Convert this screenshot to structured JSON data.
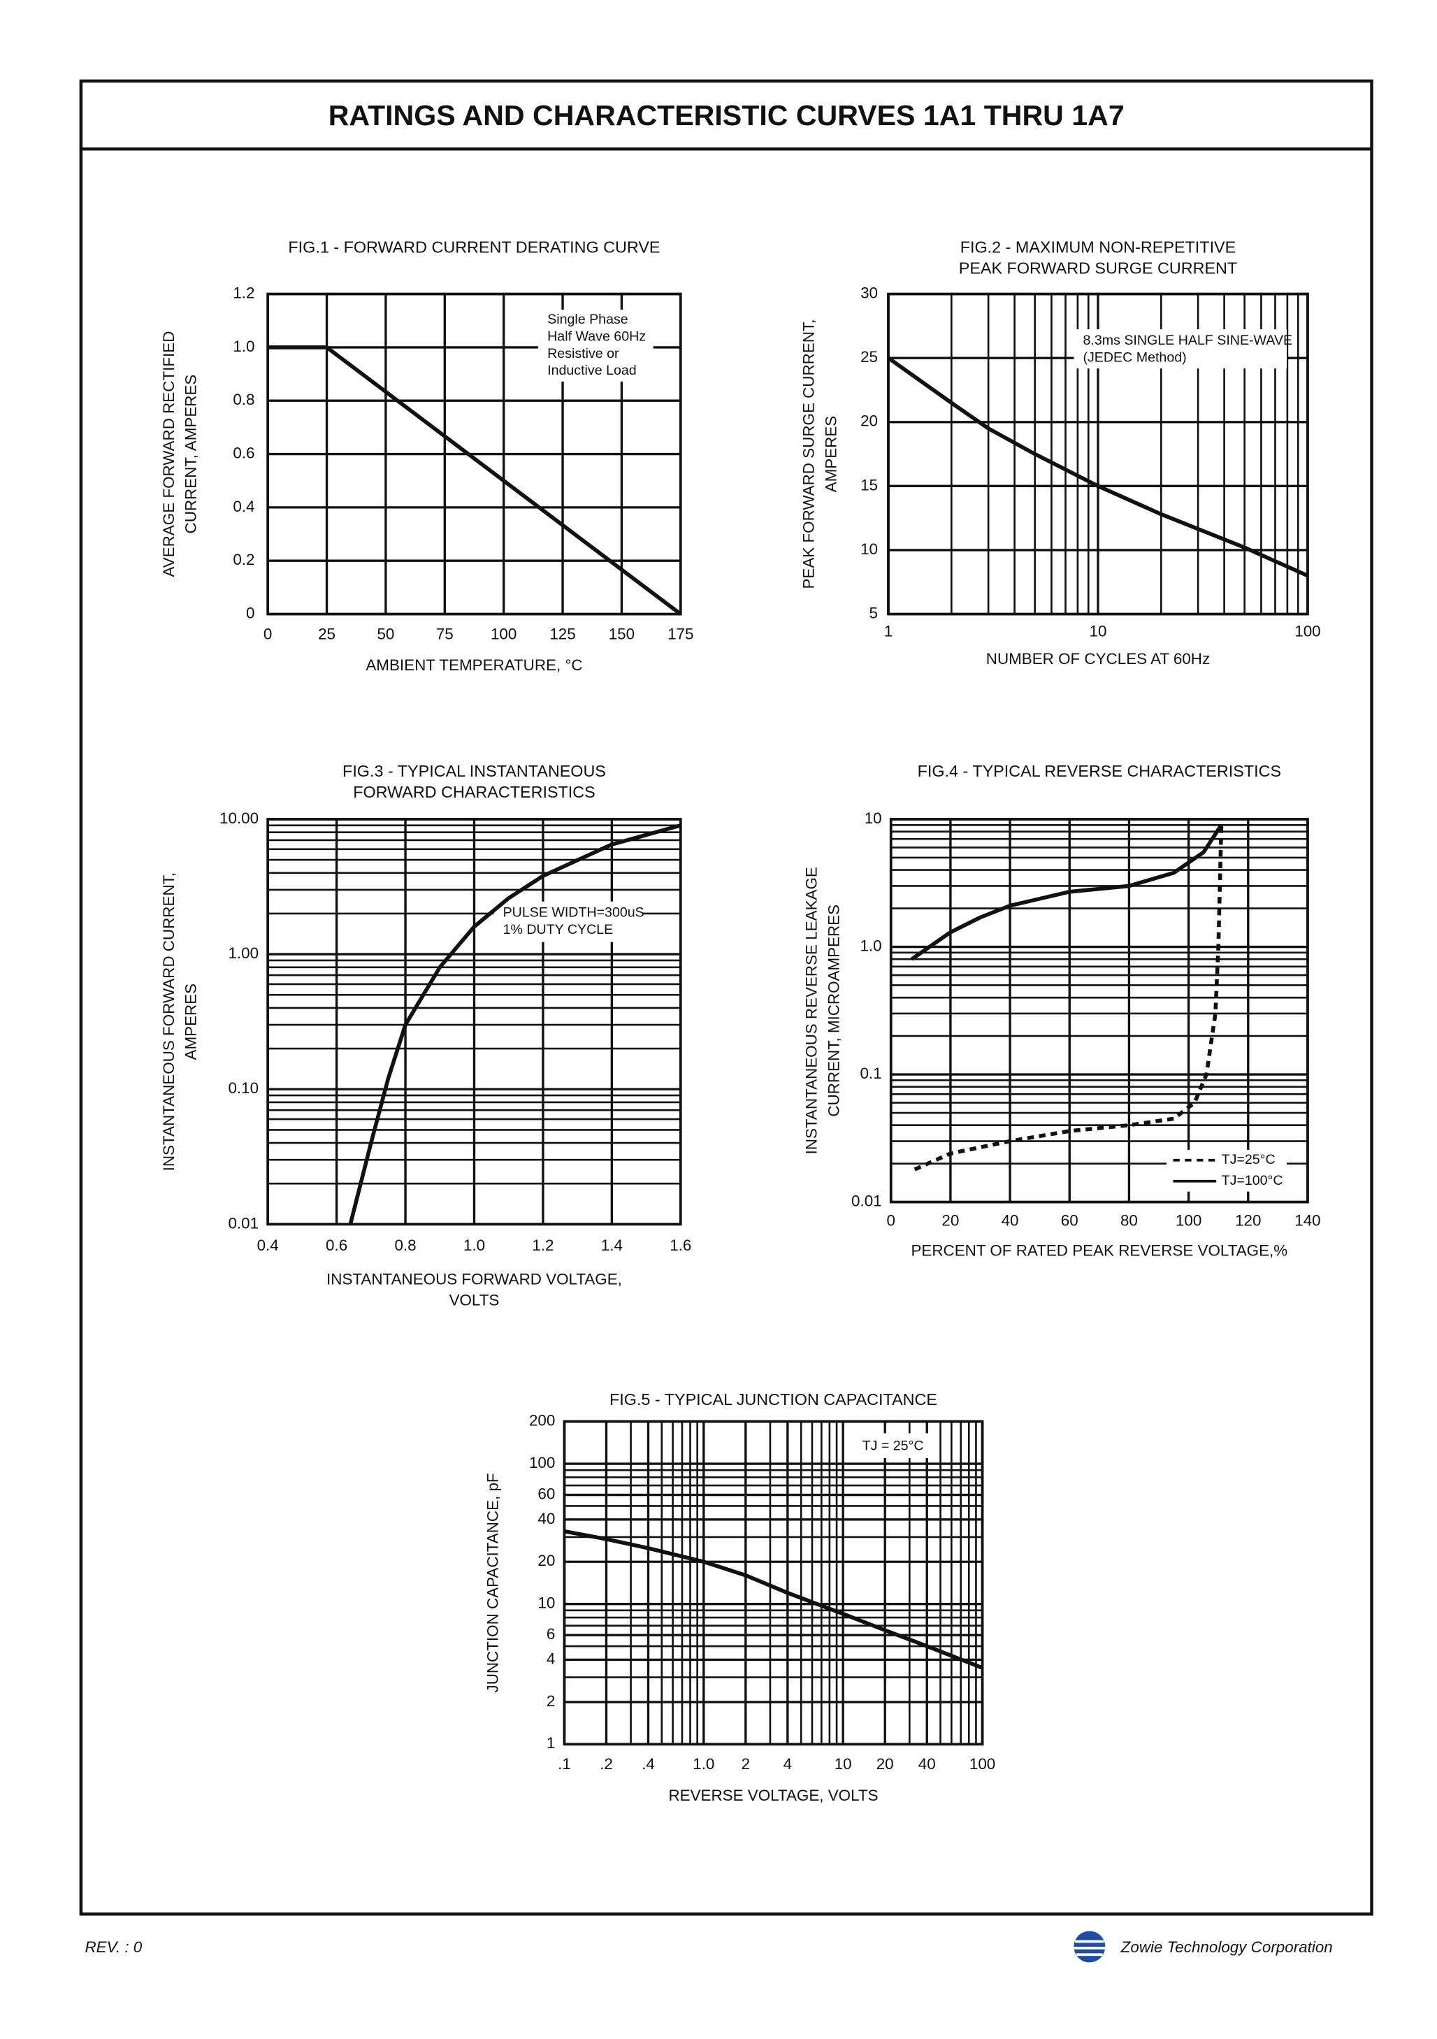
{
  "header": {
    "title": "RATINGS AND CHARACTERISTIC CURVES 1A1 THRU 1A7"
  },
  "footer": {
    "revision": "REV. : 0",
    "company": "Zowie Technology Corporation"
  },
  "chart_data": [
    {
      "type": "line",
      "title": "FIG.1 - FORWARD CURRENT DERATING CURVE",
      "x_label": "AMBIENT TEMPERATURE, °C",
      "y_label": [
        "AVERAGE FORWARD RECTIFIED",
        "CURRENT, AMPERES"
      ],
      "annotation": [
        "Single Phase",
        "Half Wave 60Hz",
        "Resistive or",
        "Inductive Load"
      ],
      "xlim": [
        0,
        175
      ],
      "xticks": [
        0,
        25,
        50,
        75,
        100,
        125,
        150,
        175
      ],
      "ylim": [
        0,
        1.2
      ],
      "yticks": [
        0,
        0.2,
        0.4,
        0.6,
        0.8,
        {
          "value": 1,
          "label": "1.0"
        },
        1.2
      ],
      "grid": true,
      "series": [
        {
          "color": "#111111",
          "style": "solid",
          "x": [
            0,
            25,
            175
          ],
          "values": [
            1,
            1,
            0
          ]
        }
      ]
    },
    {
      "type": "line",
      "title": [
        "FIG.2 - MAXIMUM NON-REPETITIVE",
        "PEAK FORWARD SURGE CURRENT"
      ],
      "x_label": "NUMBER OF CYCLES AT 60Hz",
      "y_label": [
        "PEAK FORWARD SURGE CURRENT,",
        "AMPERES"
      ],
      "annotation": [
        "8.3ms SINGLE HALF SINE-WAVE",
        "(JEDEC Method)"
      ],
      "xscale": "log",
      "xlim": [
        1,
        100
      ],
      "xticks": [
        1,
        10,
        100
      ],
      "xminor": [
        2,
        3,
        4,
        5,
        6,
        7,
        8,
        9,
        20,
        30,
        40,
        50,
        60,
        70,
        80,
        90
      ],
      "ylim": [
        5,
        30
      ],
      "yticks": [
        5,
        10,
        15,
        20,
        25,
        30
      ],
      "grid": true,
      "series": [
        {
          "color": "#111111",
          "style": "solid",
          "x": [
            1,
            2,
            3,
            5,
            10,
            20,
            50,
            100
          ],
          "values": [
            25,
            21.5,
            19.5,
            17.5,
            15,
            12.8,
            10.2,
            8
          ]
        }
      ]
    },
    {
      "type": "line",
      "title": [
        "FIG.3 - TYPICAL INSTANTANEOUS",
        "FORWARD CHARACTERISTICS"
      ],
      "x_label": [
        "INSTANTANEOUS FORWARD VOLTAGE,",
        "VOLTS"
      ],
      "y_label": [
        "INSTANTANEOUS FORWARD CURRENT,",
        "AMPERES"
      ],
      "annotation": [
        "PULSE WIDTH=300uS",
        "1% DUTY CYCLE"
      ],
      "xlim": [
        0.4,
        1.6
      ],
      "xticks": [
        0.4,
        0.6,
        0.8,
        {
          "value": 1,
          "label": "1.0"
        },
        1.2,
        1.4,
        1.6
      ],
      "yscale": "log",
      "ylim": [
        0.01,
        10
      ],
      "yticks": [
        0.01,
        {
          "value": 0.1,
          "label": "0.10"
        },
        {
          "value": 1,
          "label": "1.00"
        },
        {
          "value": 10,
          "label": "10.00"
        }
      ],
      "yminor": [
        0.02,
        0.03,
        0.04,
        0.05,
        0.06,
        0.07,
        0.08,
        0.09,
        0.2,
        0.3,
        0.4,
        0.5,
        0.6,
        0.7,
        0.8,
        0.9,
        2,
        3,
        4,
        5,
        6,
        7,
        8,
        9
      ],
      "grid": true,
      "series": [
        {
          "color": "#111111",
          "style": "solid",
          "x": [
            0.64,
            0.7,
            0.75,
            0.8,
            0.9,
            1.0,
            1.1,
            1.2,
            1.4,
            1.6
          ],
          "values": [
            0.01,
            0.04,
            0.12,
            0.3,
            0.8,
            1.6,
            2.6,
            3.8,
            6.5,
            9
          ]
        }
      ]
    },
    {
      "type": "line",
      "title": "FIG.4 - TYPICAL REVERSE CHARACTERISTICS",
      "x_label": "PERCENT OF RATED PEAK REVERSE VOLTAGE,%",
      "y_label": [
        "INSTANTANEOUS REVERSE LEAKAGE",
        "CURRENT, MICROAMPERES"
      ],
      "xlim": [
        0,
        140
      ],
      "xticks": [
        0,
        20,
        40,
        60,
        80,
        100,
        120,
        140
      ],
      "yscale": "log",
      "ylim": [
        0.01,
        10
      ],
      "yticks": [
        0.01,
        0.1,
        {
          "value": 1,
          "label": "1.0"
        },
        10
      ],
      "yminor": [
        0.02,
        0.03,
        0.04,
        0.05,
        0.06,
        0.07,
        0.08,
        0.09,
        0.2,
        0.3,
        0.4,
        0.5,
        0.6,
        0.7,
        0.8,
        0.9,
        2,
        3,
        4,
        5,
        6,
        7,
        8,
        9
      ],
      "grid": true,
      "legend": "lower right",
      "series": [
        {
          "name": "TJ=25°C",
          "color": "#111111",
          "style": "dashed",
          "x": [
            8,
            20,
            40,
            60,
            80,
            95,
            102,
            106,
            109,
            110,
            110.5,
            111
          ],
          "values": [
            0.018,
            0.024,
            0.03,
            0.036,
            0.04,
            0.045,
            0.06,
            0.1,
            0.3,
            1,
            3,
            9
          ]
        },
        {
          "name": "TJ=100°C",
          "color": "#111111",
          "style": "solid",
          "x": [
            7,
            20,
            30,
            40,
            60,
            80,
            95,
            105,
            111
          ],
          "values": [
            0.8,
            1.3,
            1.7,
            2.1,
            2.7,
            3.0,
            3.8,
            5.5,
            9
          ]
        }
      ]
    },
    {
      "type": "line",
      "title": "FIG.5 - TYPICAL JUNCTION CAPACITANCE",
      "x_label": "REVERSE VOLTAGE, VOLTS",
      "y_label": "JUNCTION CAPACITANCE, pF",
      "annotation": [
        "TJ = 25°C"
      ],
      "xscale": "log",
      "xlim": [
        0.1,
        100
      ],
      "xticks": [
        {
          "value": 0.1,
          "label": ".1"
        },
        {
          "value": 0.2,
          "label": ".2"
        },
        {
          "value": 0.4,
          "label": ".4"
        },
        {
          "value": 1,
          "label": "1.0"
        },
        2,
        4,
        10,
        20,
        40,
        100
      ],
      "xminor": [
        0.3,
        0.5,
        0.6,
        0.7,
        0.8,
        0.9,
        3,
        5,
        6,
        7,
        8,
        9,
        30,
        50,
        60,
        70,
        80,
        90
      ],
      "yscale": "log",
      "ylim": [
        1,
        200
      ],
      "yticks": [
        1,
        2,
        4,
        6,
        10,
        20,
        40,
        60,
        100,
        200
      ],
      "yminor": [
        3,
        5,
        7,
        8,
        9,
        30,
        50,
        70,
        80,
        90
      ],
      "grid": true,
      "series": [
        {
          "color": "#111111",
          "style": "solid",
          "x": [
            0.1,
            0.2,
            0.4,
            1,
            2,
            4,
            10,
            20,
            40,
            100
          ],
          "values": [
            33,
            29,
            25,
            20,
            16,
            12,
            8.5,
            6.5,
            5,
            3.5
          ]
        }
      ]
    }
  ]
}
